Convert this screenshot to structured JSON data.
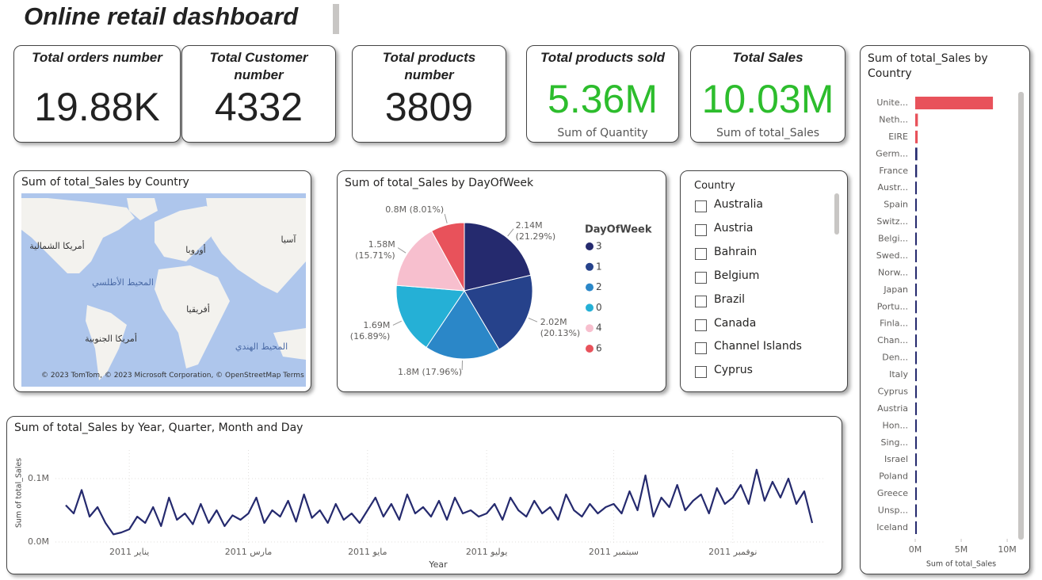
{
  "header": {
    "title": "Online retail dashboard"
  },
  "cards": [
    {
      "title": "Total orders number",
      "value": "19.88K"
    },
    {
      "title": "Total Customer number",
      "value": "4332"
    },
    {
      "title": "Total products number",
      "value": "3809"
    },
    {
      "title": "Total products sold",
      "value": "5.36M",
      "subtitle": "Sum of Quantity"
    },
    {
      "title": "Total Sales",
      "value": "10.03M",
      "subtitle": "Sum of total_Sales"
    }
  ],
  "map": {
    "title": "Sum of total_Sales by Country",
    "labels": [
      "أمريكا الشمالية",
      "المحيط الأطلسي",
      "أوروبا",
      "آسيا",
      "أفريقيا",
      "أمريكا الجنوبية",
      "المحيط الهندي"
    ],
    "attribution": "© 2023 TomTom, © 2023 Microsoft Corporation, © OpenStreetMap Terms"
  },
  "slicer": {
    "title": "Country",
    "items": [
      "Australia",
      "Austria",
      "Bahrain",
      "Belgium",
      "Brazil",
      "Canada",
      "Channel Islands",
      "Cyprus"
    ]
  },
  "chart_data": [
    {
      "type": "pie",
      "title": "Sum of total_Sales by DayOfWeek",
      "legend_title": "DayOfWeek",
      "categories": [
        "3",
        "1",
        "2",
        "0",
        "4",
        "6"
      ],
      "values": [
        2.14,
        2.02,
        1.8,
        1.69,
        1.58,
        0.8
      ],
      "value_labels": [
        "2.14M (21.29%)",
        "2.02M (20.13%)",
        "1.8M (17.96%)",
        "1.69M (16.89%)",
        "1.58M (15.71%)",
        "0.8M (8.01%)"
      ],
      "colors": [
        "#252a6e",
        "#26428b",
        "#2b87c8",
        "#25b0d6",
        "#f7bfce",
        "#e8525b"
      ]
    },
    {
      "type": "line",
      "title": "Sum of total_Sales by Year, Quarter, Month and Day",
      "x_label": "Year",
      "y_label": "Sum of total_Sales",
      "categories": [
        null,
        null,
        null,
        null,
        null,
        null,
        null,
        null,
        "يناير 2011",
        null,
        null,
        null,
        null,
        null,
        null,
        null,
        null,
        null,
        null,
        null,
        null,
        null,
        null,
        "مارس 2011",
        null,
        null,
        null,
        null,
        null,
        null,
        null,
        null,
        null,
        null,
        null,
        null,
        null,
        null,
        "مايو 2011",
        null,
        null,
        null,
        null,
        null,
        null,
        null,
        null,
        null,
        null,
        null,
        null,
        null,
        null,
        "يوليو 2011",
        null,
        null,
        null,
        null,
        null,
        null,
        null,
        null,
        null,
        null,
        null,
        null,
        null,
        null,
        null,
        "سبتمبر 2011",
        null,
        null,
        null,
        null,
        null,
        null,
        null,
        null,
        null,
        null,
        null,
        null,
        null,
        null,
        "نوفمبر 2011",
        null,
        null,
        null,
        null,
        null,
        null,
        null,
        null,
        null,
        null
      ],
      "values": [
        0.058,
        0.045,
        0.082,
        0.04,
        0.055,
        0.03,
        0.012,
        0.015,
        0.02,
        0.04,
        0.03,
        0.055,
        0.025,
        0.07,
        0.035,
        0.045,
        0.028,
        0.06,
        0.03,
        0.05,
        0.025,
        0.042,
        0.035,
        0.045,
        0.07,
        0.03,
        0.05,
        0.04,
        0.065,
        0.032,
        0.075,
        0.038,
        0.05,
        0.03,
        0.06,
        0.035,
        0.045,
        0.03,
        0.05,
        0.07,
        0.04,
        0.06,
        0.035,
        0.075,
        0.045,
        0.055,
        0.04,
        0.065,
        0.035,
        0.07,
        0.045,
        0.05,
        0.04,
        0.045,
        0.06,
        0.035,
        0.07,
        0.05,
        0.04,
        0.065,
        0.045,
        0.055,
        0.035,
        0.075,
        0.05,
        0.04,
        0.06,
        0.045,
        0.055,
        0.06,
        0.045,
        0.08,
        0.05,
        0.105,
        0.04,
        0.07,
        0.055,
        0.09,
        0.05,
        0.065,
        0.075,
        0.045,
        0.085,
        0.06,
        0.07,
        0.09,
        0.06,
        0.114,
        0.065,
        0.095,
        0.07,
        0.1,
        0.06,
        0.08,
        0.03
      ],
      "color": "#252a6e",
      "ylim": [
        0,
        0.14
      ],
      "yticks": [
        {
          "value": 0,
          "label": "0.0M"
        },
        {
          "value": 0.1,
          "label": "0.1M"
        }
      ],
      "grid": true
    },
    {
      "type": "bar",
      "horizontal": true,
      "title": "Sum of total_Sales by Country",
      "x_label": "Sum of total_Sales",
      "categories": [
        "Unite...",
        "Neth...",
        "EIRE",
        "Germ...",
        "France",
        "Austr...",
        "Spain",
        "Switz...",
        "Belgi...",
        "Swed...",
        "Norw...",
        "Japan",
        "Portu...",
        "Finla...",
        "Chan...",
        "Den...",
        "Italy",
        "Cyprus",
        "Austria",
        "Hon...",
        "Sing...",
        "Israel",
        "Poland",
        "Greece",
        "Unsp...",
        "Iceland"
      ],
      "values": [
        8.45,
        0.29,
        0.27,
        0.23,
        0.2,
        0.14,
        0.06,
        0.06,
        0.04,
        0.04,
        0.04,
        0.03,
        0.03,
        0.02,
        0.02,
        0.02,
        0.02,
        0.01,
        0.01,
        0.01,
        0.01,
        0.008,
        0.007,
        0.005,
        0.004,
        0.004
      ],
      "colors": [
        "#e8525b",
        "#e8525b",
        "#e8525b",
        "#252a6e",
        "#252a6e",
        "#252a6e",
        "#252a6e",
        "#252a6e",
        "#252a6e",
        "#252a6e",
        "#252a6e",
        "#252a6e",
        "#252a6e",
        "#252a6e",
        "#252a6e",
        "#252a6e",
        "#252a6e",
        "#252a6e",
        "#252a6e",
        "#252a6e",
        "#252a6e",
        "#252a6e",
        "#252a6e",
        "#252a6e",
        "#252a6e",
        "#252a6e"
      ],
      "xlim": [
        0,
        11.2
      ],
      "xticks": [
        {
          "value": 0,
          "label": "0M"
        },
        {
          "value": 5,
          "label": "5M"
        },
        {
          "value": 10,
          "label": "10M"
        }
      ]
    }
  ]
}
